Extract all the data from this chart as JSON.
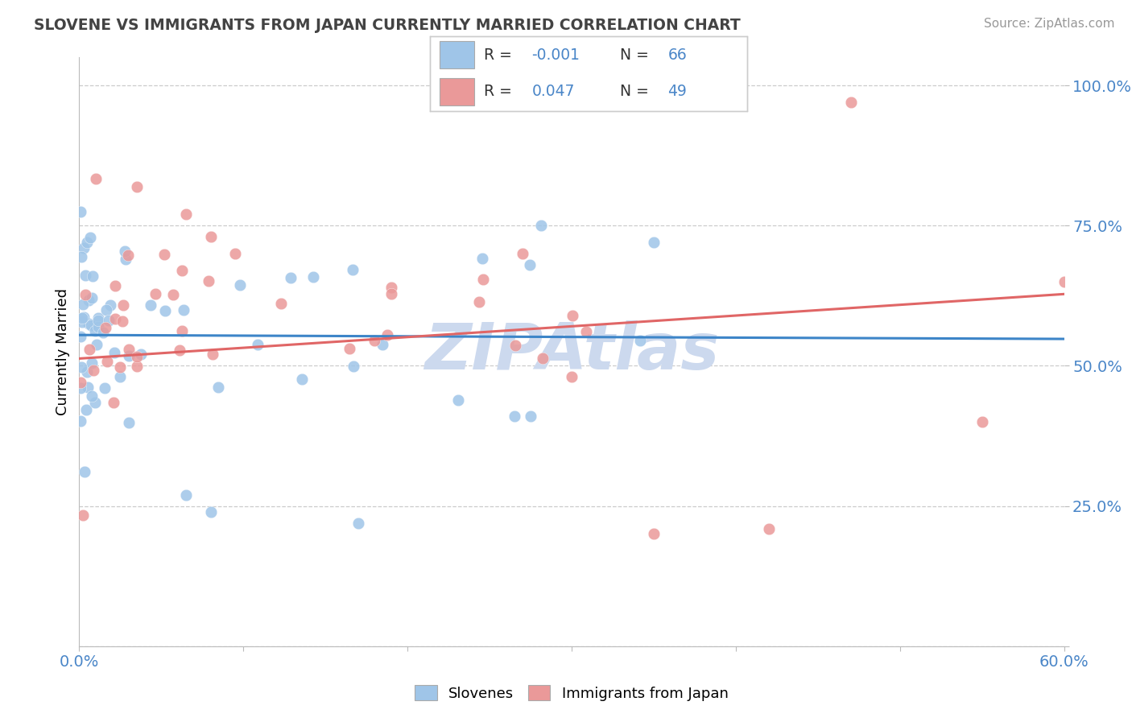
{
  "title": "SLOVENE VS IMMIGRANTS FROM JAPAN CURRENTLY MARRIED CORRELATION CHART",
  "source": "Source: ZipAtlas.com",
  "ylabel": "Currently Married",
  "xmin": 0.0,
  "xmax": 0.6,
  "ymin": 0.0,
  "ymax": 1.05,
  "yticks": [
    0.0,
    0.25,
    0.5,
    0.75,
    1.0
  ],
  "ytick_labels": [
    "",
    "25.0%",
    "50.0%",
    "75.0%",
    "100.0%"
  ],
  "xtick_positions": [
    0.0,
    0.1,
    0.2,
    0.3,
    0.4,
    0.5,
    0.6
  ],
  "legend_labels": [
    "Slovenes",
    "Immigrants from Japan"
  ],
  "blue_color": "#9fc5e8",
  "pink_color": "#ea9999",
  "blue_line_color": "#3d85c8",
  "pink_line_color": "#e06666",
  "axis_color": "#4a86c8",
  "grid_color": "#c0c0c0",
  "watermark_color": "#ccd9ee",
  "title_color": "#434343",
  "source_color": "#999999",
  "blue_line_y_at_0": 0.555,
  "blue_line_y_at_60": 0.548,
  "pink_line_y_at_0": 0.513,
  "pink_line_y_at_60": 0.628
}
